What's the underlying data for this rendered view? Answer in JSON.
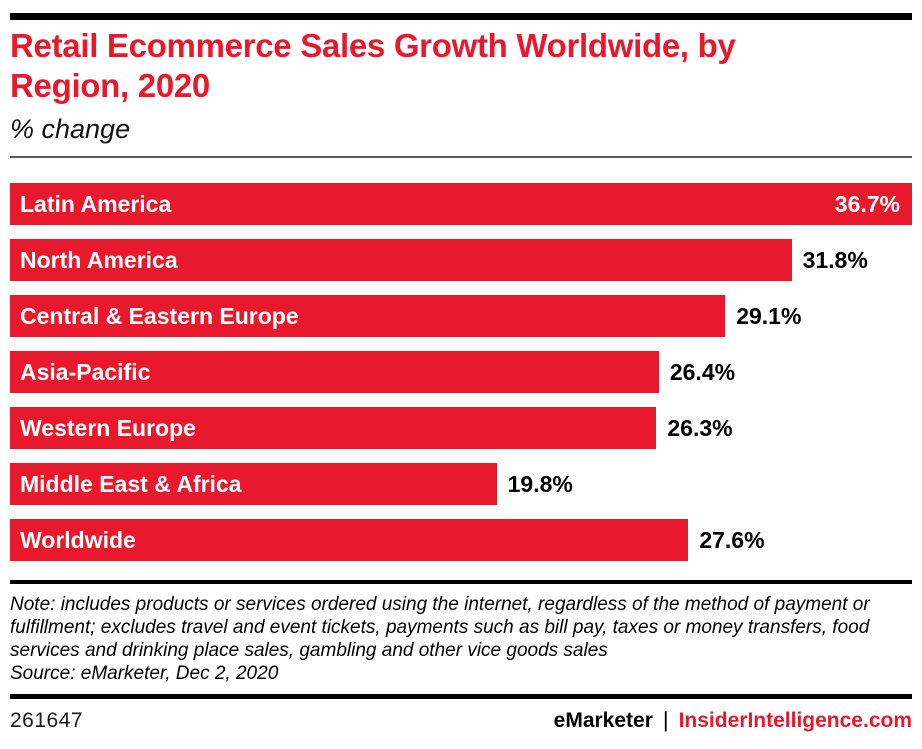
{
  "chart_data": {
    "type": "bar",
    "orientation": "horizontal",
    "title": "Retail Ecommerce Sales Growth Worldwide, by Region, 2020",
    "subtitle": "% change",
    "categories": [
      "Latin America",
      "North America",
      "Central & Eastern Europe",
      "Asia-Pacific",
      "Western Europe",
      "Middle East & Africa",
      "Worldwide"
    ],
    "values": [
      36.7,
      31.8,
      29.1,
      26.4,
      26.3,
      19.8,
      27.6
    ],
    "value_labels": [
      "36.7%",
      "31.8%",
      "29.1%",
      "26.4%",
      "26.3%",
      "19.8%",
      "27.6%"
    ],
    "unit": "% change",
    "xlim": [
      0,
      36.7
    ],
    "grid": false,
    "legend": "none",
    "bar_color": "#e8192c",
    "value_label_position": "outside-right, inside-right for max bar"
  },
  "footnote": {
    "note": "Note: includes products or services ordered using the internet, regardless of the method of payment or fulfillment; excludes travel and event tickets, payments such as bill pay, taxes or money transfers, food services and drinking place sales, gambling and other vice goods sales",
    "source": "Source: eMarketer, Dec 2, 2020"
  },
  "footer": {
    "chart_id": "261647",
    "brand": "eMarketer",
    "separator": "|",
    "site": "InsiderIntelligence.com"
  },
  "colors": {
    "accent_red": "#e8192c",
    "text_black": "#000000",
    "bar_label_white": "#ffffff",
    "rule_gray": "#58595b"
  }
}
